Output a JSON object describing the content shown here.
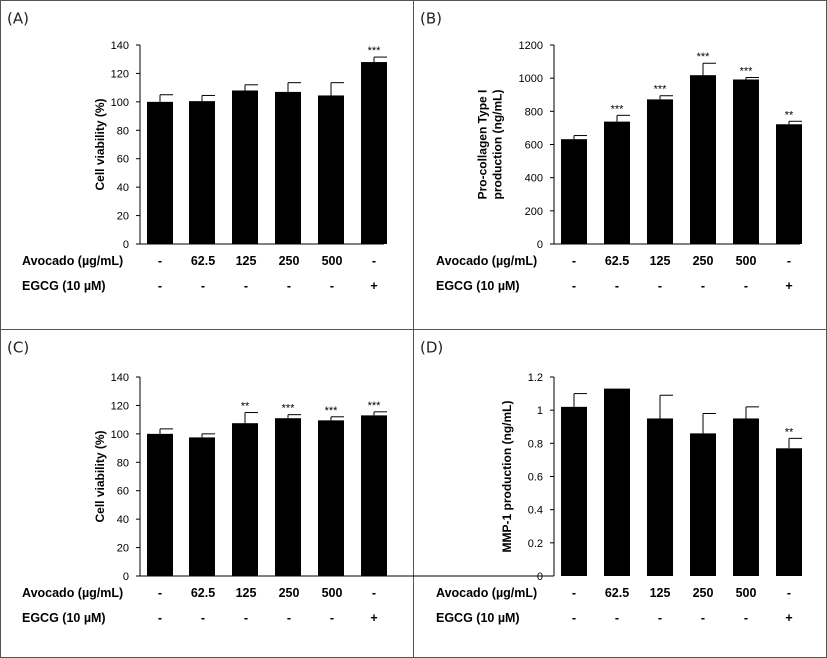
{
  "chart_data": [
    {
      "panel_label": "(A)",
      "type": "bar",
      "ylabel": "Cell viability (%)",
      "ylim": [
        0,
        140
      ],
      "yticks": [
        0,
        20,
        40,
        60,
        80,
        100,
        120,
        140
      ],
      "values": [
        100,
        100.5,
        108,
        107,
        104.5,
        128
      ],
      "errors": [
        5,
        4,
        4,
        6.5,
        9,
        3.5
      ],
      "significance": [
        "",
        "",
        "",
        "",
        "",
        "***"
      ],
      "treatment_rows": [
        {
          "label": "Avocado (µg/mL)",
          "values": [
            "-",
            "62.5",
            "125",
            "250",
            "500",
            "-"
          ]
        },
        {
          "label": "EGCG (10 µM)",
          "values": [
            "-",
            "-",
            "-",
            "-",
            "-",
            "+"
          ]
        }
      ]
    },
    {
      "panel_label": "(B)",
      "type": "bar",
      "ylabel": [
        "Pro-collagen Type I",
        "production (ng/mL)"
      ],
      "ylim": [
        0,
        1200
      ],
      "yticks": [
        0,
        200,
        400,
        600,
        800,
        1000,
        1200
      ],
      "values": [
        632,
        738,
        872,
        1018,
        992,
        722
      ],
      "errors": [
        22,
        38,
        22,
        72,
        12,
        18
      ],
      "significance": [
        "",
        "***",
        "***",
        "***",
        "***",
        "**"
      ],
      "treatment_rows": [
        {
          "label": "Avocado (µg/mL)",
          "values": [
            "-",
            "62.5",
            "125",
            "250",
            "500",
            "-"
          ]
        },
        {
          "label": "EGCG (10 µM)",
          "values": [
            "-",
            "-",
            "-",
            "-",
            "-",
            "+"
          ]
        }
      ]
    },
    {
      "panel_label": "(C)",
      "type": "bar",
      "ylabel": "Cell viability (%)",
      "ylim": [
        0,
        140
      ],
      "yticks": [
        0,
        20,
        40,
        60,
        80,
        100,
        120,
        140
      ],
      "values": [
        100,
        97.5,
        107.5,
        111,
        109.5,
        113
      ],
      "errors": [
        3.5,
        2.5,
        7.5,
        2.5,
        2.5,
        2.5
      ],
      "significance": [
        "",
        "",
        "**",
        "***",
        "***",
        "***"
      ],
      "treatment_rows": [
        {
          "label": "Avocado (µg/mL)",
          "values": [
            "-",
            "62.5",
            "125",
            "250",
            "500",
            "-"
          ]
        },
        {
          "label": "EGCG (10 µM)",
          "values": [
            "-",
            "-",
            "-",
            "-",
            "-",
            "+"
          ]
        }
      ]
    },
    {
      "panel_label": "(D)",
      "type": "bar",
      "ylabel": "MMP-1 production (ng/mL)",
      "ylim": [
        0,
        1.2
      ],
      "yticks": [
        "0",
        "0.2",
        "0.4",
        "0.6",
        "0.8",
        "1",
        "1.2"
      ],
      "values": [
        1.02,
        1.13,
        0.95,
        0.86,
        0.95,
        0.77
      ],
      "errors": [
        0.08,
        0,
        0.14,
        0.12,
        0.07,
        0.06
      ],
      "significance": [
        "",
        "",
        "",
        "",
        "",
        "**"
      ],
      "treatment_rows": [
        {
          "label": "Avocado (µg/mL)",
          "values": [
            "-",
            "62.5",
            "125",
            "250",
            "500",
            "-"
          ]
        },
        {
          "label": "EGCG (10 µM)",
          "values": [
            "-",
            "-",
            "-",
            "-",
            "-",
            "+"
          ]
        }
      ]
    }
  ]
}
